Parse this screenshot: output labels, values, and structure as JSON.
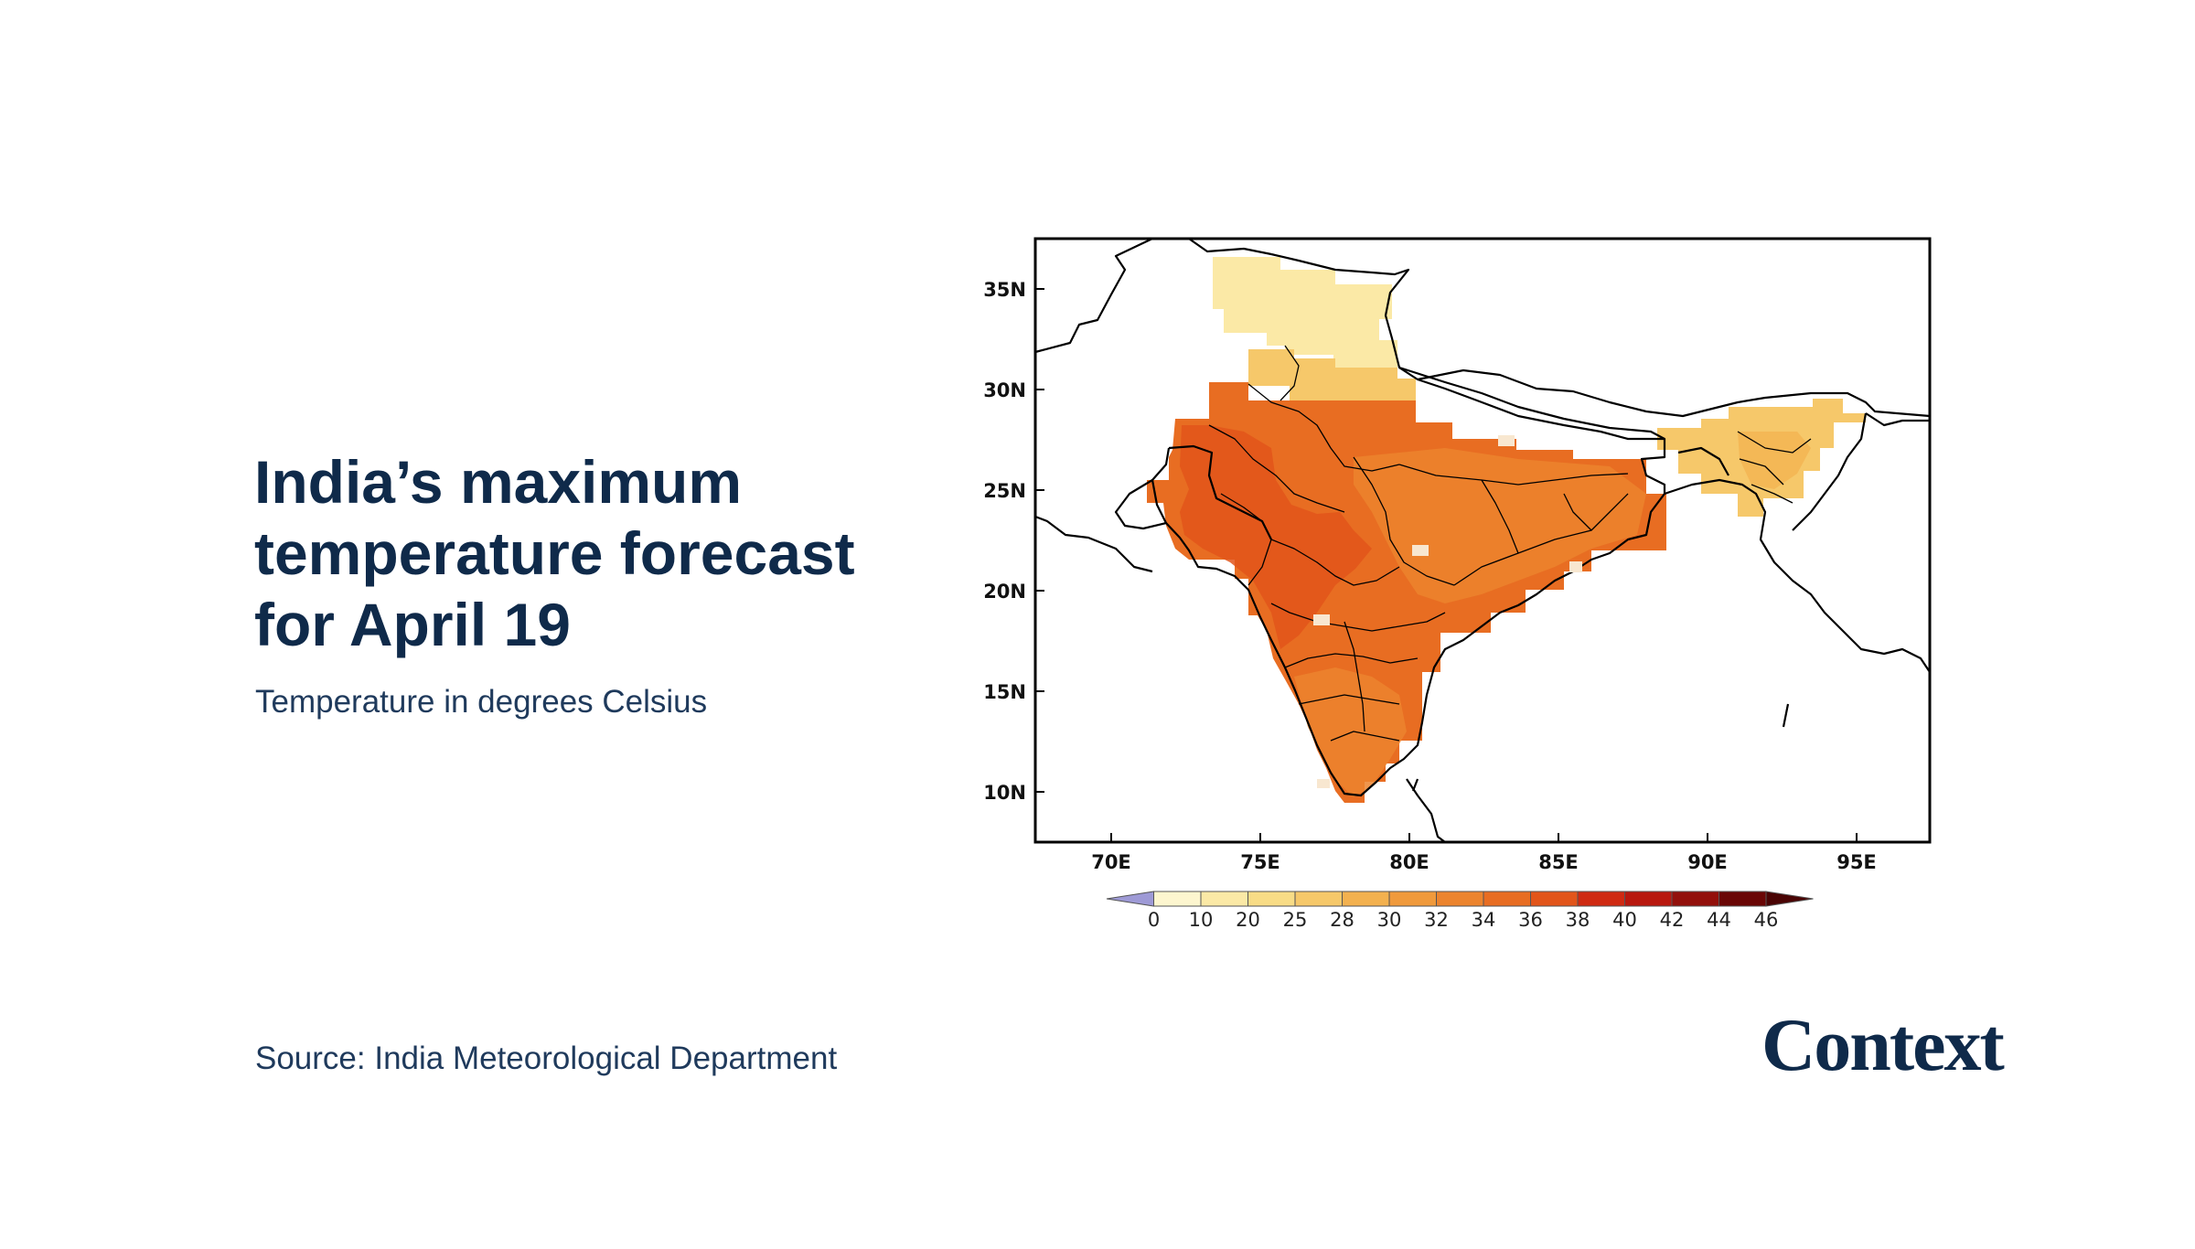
{
  "header": {
    "title": "India’s maximum temperature forecast for April 19",
    "subtitle": "Temperature in degrees Celsius"
  },
  "footer": {
    "source": "Source: India Meteorological Department",
    "logo_text": "Context"
  },
  "map": {
    "lat_labels": [
      "35N",
      "30N",
      "25N",
      "20N",
      "15N",
      "10N"
    ],
    "lon_labels": [
      "70E",
      "75E",
      "80E",
      "85E",
      "90E",
      "95E"
    ],
    "colorbar": {
      "labels": [
        "0",
        "10",
        "20",
        "25",
        "28",
        "30",
        "32",
        "34",
        "36",
        "38",
        "40",
        "42",
        "44",
        "46"
      ],
      "colors": [
        "#9e9ad6",
        "#fdf6cf",
        "#fbe9a6",
        "#f8dc86",
        "#f6c86a",
        "#f3b14f",
        "#f09a3c",
        "#ec842e",
        "#e86d22",
        "#e2551a",
        "#cf2a12",
        "#b8180e",
        "#93100b",
        "#6a0605",
        "#4a0404"
      ]
    },
    "regions": [
      {
        "name": "north-kashmir",
        "value_band": "10-20",
        "color": "#fbe9a6"
      },
      {
        "name": "himalayan-foothills",
        "value_band": "25-28",
        "color": "#f6c86a"
      },
      {
        "name": "northwest",
        "value_band": "36-38",
        "color": "#e86d22"
      },
      {
        "name": "central",
        "value_band": "36-38",
        "color": "#e86d22"
      },
      {
        "name": "east",
        "value_band": "34-36",
        "color": "#ec842e"
      },
      {
        "name": "south",
        "value_band": "34-36",
        "color": "#ec842e"
      },
      {
        "name": "northeast",
        "value_band": "25-28",
        "color": "#f6c86a"
      }
    ]
  }
}
